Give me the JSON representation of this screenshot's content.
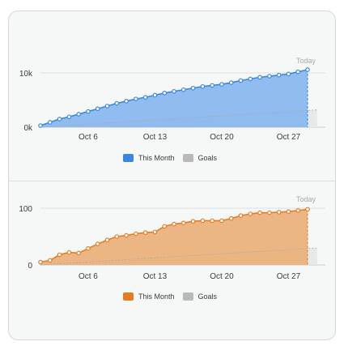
{
  "chart_data": [
    {
      "type": "area",
      "ylim": [
        0,
        10000
      ],
      "y_ticks": [
        "0k",
        "10k"
      ],
      "x_labels": [
        "Oct 6",
        "Oct 13",
        "Oct 20",
        "Oct 27"
      ],
      "x_label_days": [
        6,
        13,
        20,
        27
      ],
      "today_label": "Today",
      "legend": [
        "This Month",
        "Goals"
      ],
      "colors": {
        "line": "#3c86de",
        "fill": "#8bb8ee",
        "goal": "#e5e6e7"
      },
      "series": [
        {
          "name": "This Month",
          "x": [
            1,
            2,
            3,
            4,
            5,
            6,
            7,
            8,
            9,
            10,
            11,
            12,
            13,
            14,
            15,
            16,
            17,
            18,
            19,
            20,
            21,
            22,
            23,
            24,
            25,
            26,
            27,
            28,
            29
          ],
          "values": [
            300,
            900,
            1500,
            1900,
            2400,
            2900,
            3400,
            3900,
            4400,
            4800,
            5200,
            5500,
            5900,
            6300,
            6600,
            6900,
            7200,
            7500,
            7700,
            7900,
            8200,
            8600,
            8900,
            9200,
            9400,
            9600,
            9800,
            10200,
            10600
          ]
        },
        {
          "name": "Goals",
          "x": [
            1,
            30
          ],
          "values": [
            0,
            3200
          ]
        }
      ]
    },
    {
      "type": "area",
      "ylim": [
        0,
        100
      ],
      "y_ticks": [
        "0",
        "100"
      ],
      "x_labels": [
        "Oct 6",
        "Oct 13",
        "Oct 20",
        "Oct 27"
      ],
      "x_label_days": [
        6,
        13,
        20,
        27
      ],
      "today_label": "Today",
      "legend": [
        "This Month",
        "Goals"
      ],
      "colors": {
        "line": "#e27d26",
        "fill": "#ebb27d",
        "goal": "#e5e6e7"
      },
      "series": [
        {
          "name": "This Month",
          "x": [
            1,
            2,
            3,
            4,
            5,
            6,
            7,
            8,
            9,
            10,
            11,
            12,
            13,
            14,
            15,
            16,
            17,
            18,
            19,
            20,
            21,
            22,
            23,
            24,
            25,
            26,
            27,
            28,
            29
          ],
          "values": [
            5,
            8,
            18,
            22,
            21,
            29,
            37,
            44,
            50,
            52,
            55,
            57,
            58,
            68,
            72,
            74,
            77,
            78,
            78,
            78,
            82,
            87,
            90,
            92,
            92,
            93,
            94,
            96,
            98
          ]
        },
        {
          "name": "Goals",
          "x": [
            1,
            30
          ],
          "values": [
            0,
            30
          ]
        }
      ]
    }
  ]
}
